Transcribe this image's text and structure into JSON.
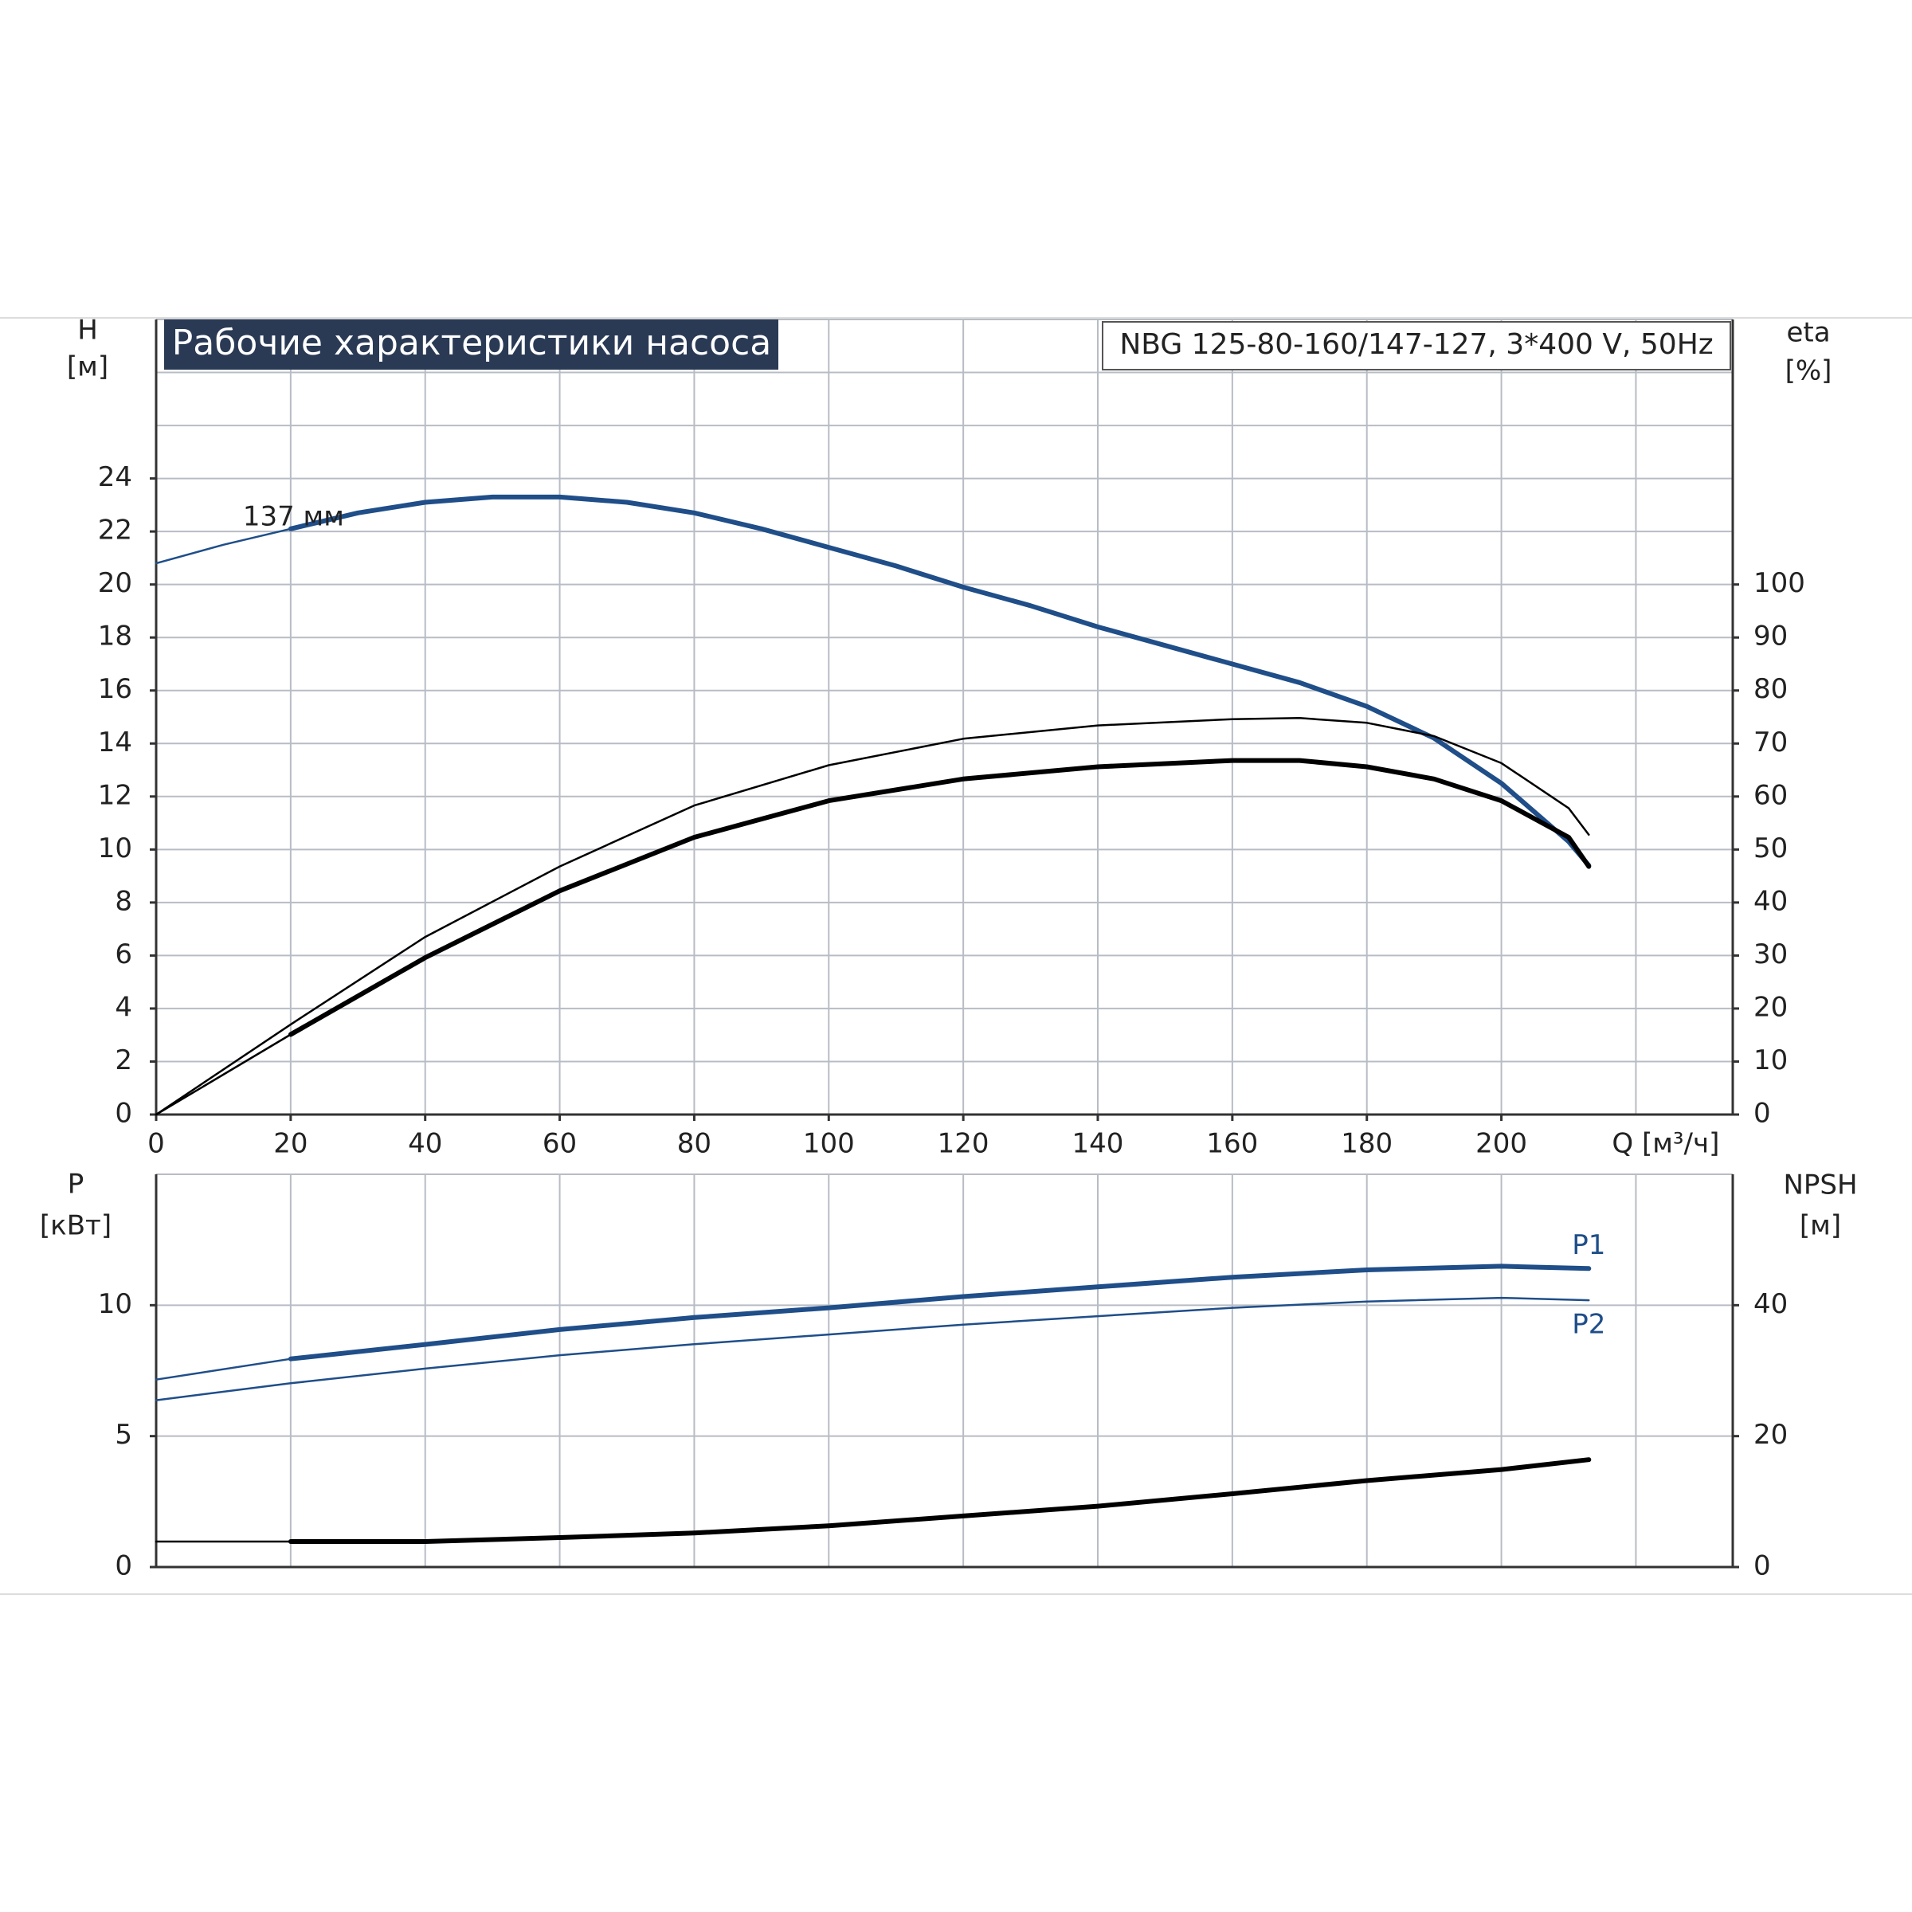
{
  "chart_data": [
    {
      "type": "line",
      "title": "Рабочие характеристики насоса",
      "subtitle": "NBG 125-80-160/147-127, 3*400 V, 50Hz",
      "ylabel": "H",
      "yunit": "[м]",
      "y2label": "eta",
      "y2unit": "[%]",
      "xlabel": "Q [м³/ч]",
      "xlim": [
        0,
        234.4
      ],
      "xticks": [
        0,
        20,
        40,
        60,
        80,
        100,
        120,
        140,
        160,
        180,
        200
      ],
      "xgrid": [
        20,
        40,
        60,
        80,
        100,
        120,
        140,
        160,
        180,
        200,
        220
      ],
      "ylim": [
        0,
        30
      ],
      "yticks": [
        0,
        2,
        4,
        6,
        8,
        10,
        12,
        14,
        16,
        18,
        20,
        22,
        24
      ],
      "ygrid": [
        2,
        4,
        6,
        8,
        10,
        12,
        14,
        16,
        18,
        20,
        22,
        24,
        26,
        28
      ],
      "y2lim": [
        0,
        150
      ],
      "y2ticks": [
        0,
        10,
        20,
        30,
        40,
        50,
        60,
        70,
        80,
        90,
        100
      ],
      "grid": true,
      "series": [
        {
          "name": "137 мм",
          "color": "#1f4e89",
          "width": "thick",
          "x": [
            20,
            30,
            40,
            50,
            60,
            70,
            80,
            90,
            100,
            110,
            120,
            130,
            140,
            150,
            160,
            170,
            180,
            190,
            200,
            210,
            213
          ],
          "values": [
            22.1,
            22.7,
            23.1,
            23.3,
            23.3,
            23.1,
            22.7,
            22.1,
            21.4,
            20.7,
            19.9,
            19.2,
            18.4,
            17.7,
            17.0,
            16.3,
            15.4,
            14.2,
            12.5,
            10.3,
            9.4
          ]
        },
        {
          "color": "#1f4e89",
          "width": "thin",
          "x": [
            0,
            10,
            20
          ],
          "values": [
            20.8,
            21.5,
            22.1
          ]
        },
        {
          "color": "#000000",
          "width": "thin",
          "axis": "y2",
          "x": [
            0,
            20,
            40,
            60,
            80,
            100,
            120,
            140,
            160,
            170,
            180,
            190,
            200,
            210,
            213
          ],
          "values": [
            0,
            17,
            33.5,
            46.8,
            58.3,
            65.9,
            70.9,
            73.4,
            74.6,
            74.8,
            73.9,
            71.4,
            66.3,
            57.8,
            52.8
          ]
        },
        {
          "color": "#000000",
          "width": "thick",
          "axis": "y2",
          "x": [
            20,
            40,
            60,
            80,
            100,
            120,
            140,
            160,
            170,
            180,
            190,
            200,
            210,
            213
          ],
          "values": [
            15.1,
            29.6,
            42.2,
            52.3,
            59.2,
            63.3,
            65.6,
            66.8,
            66.8,
            65.6,
            63.3,
            59.2,
            52.3,
            46.8
          ]
        },
        {
          "color": "#000000",
          "width": "thin",
          "axis": "y2",
          "x": [
            0,
            20
          ],
          "values": [
            0,
            15.1
          ]
        }
      ]
    },
    {
      "type": "line",
      "ylabel": "P",
      "yunit": "[кВт]",
      "y2label": "NPSH",
      "y2unit": "[м]",
      "xlim": [
        0,
        234.4
      ],
      "xgrid": [
        20,
        40,
        60,
        80,
        100,
        120,
        140,
        160,
        180,
        200,
        220
      ],
      "ylim": [
        0,
        15
      ],
      "yticks": [
        0,
        5,
        10
      ],
      "ygrid": [
        5,
        10
      ],
      "y2lim": [
        0,
        60
      ],
      "y2ticks": [
        0,
        20,
        40
      ],
      "grid": true,
      "series": [
        {
          "name": "P1",
          "color": "#1f4e89",
          "width": "thick",
          "x": [
            20,
            40,
            60,
            80,
            100,
            120,
            140,
            160,
            180,
            200,
            213
          ],
          "values": [
            7.95,
            8.5,
            9.07,
            9.53,
            9.9,
            10.33,
            10.7,
            11.07,
            11.35,
            11.49,
            11.4
          ]
        },
        {
          "color": "#1f4e89",
          "width": "thin",
          "x": [
            0,
            20
          ],
          "values": [
            7.16,
            7.95
          ]
        },
        {
          "name": "P2",
          "color": "#1f4e89",
          "width": "thin",
          "x": [
            0,
            20,
            40,
            60,
            80,
            100,
            120,
            140,
            160,
            180,
            200,
            213
          ],
          "values": [
            6.37,
            7.02,
            7.58,
            8.09,
            8.51,
            8.88,
            9.26,
            9.58,
            9.9,
            10.14,
            10.28,
            10.19
          ]
        },
        {
          "color": "#000000",
          "width": "thick",
          "axis": "y2",
          "x": [
            20,
            40,
            60,
            80,
            100,
            120,
            140,
            160,
            180,
            200,
            213
          ],
          "values": [
            3.9,
            3.9,
            4.5,
            5.2,
            6.3,
            7.8,
            9.3,
            11.2,
            13.2,
            14.9,
            16.4
          ]
        },
        {
          "color": "#000000",
          "width": "thin",
          "axis": "y2",
          "x": [
            0,
            20
          ],
          "values": [
            3.9,
            3.9
          ]
        }
      ]
    }
  ]
}
